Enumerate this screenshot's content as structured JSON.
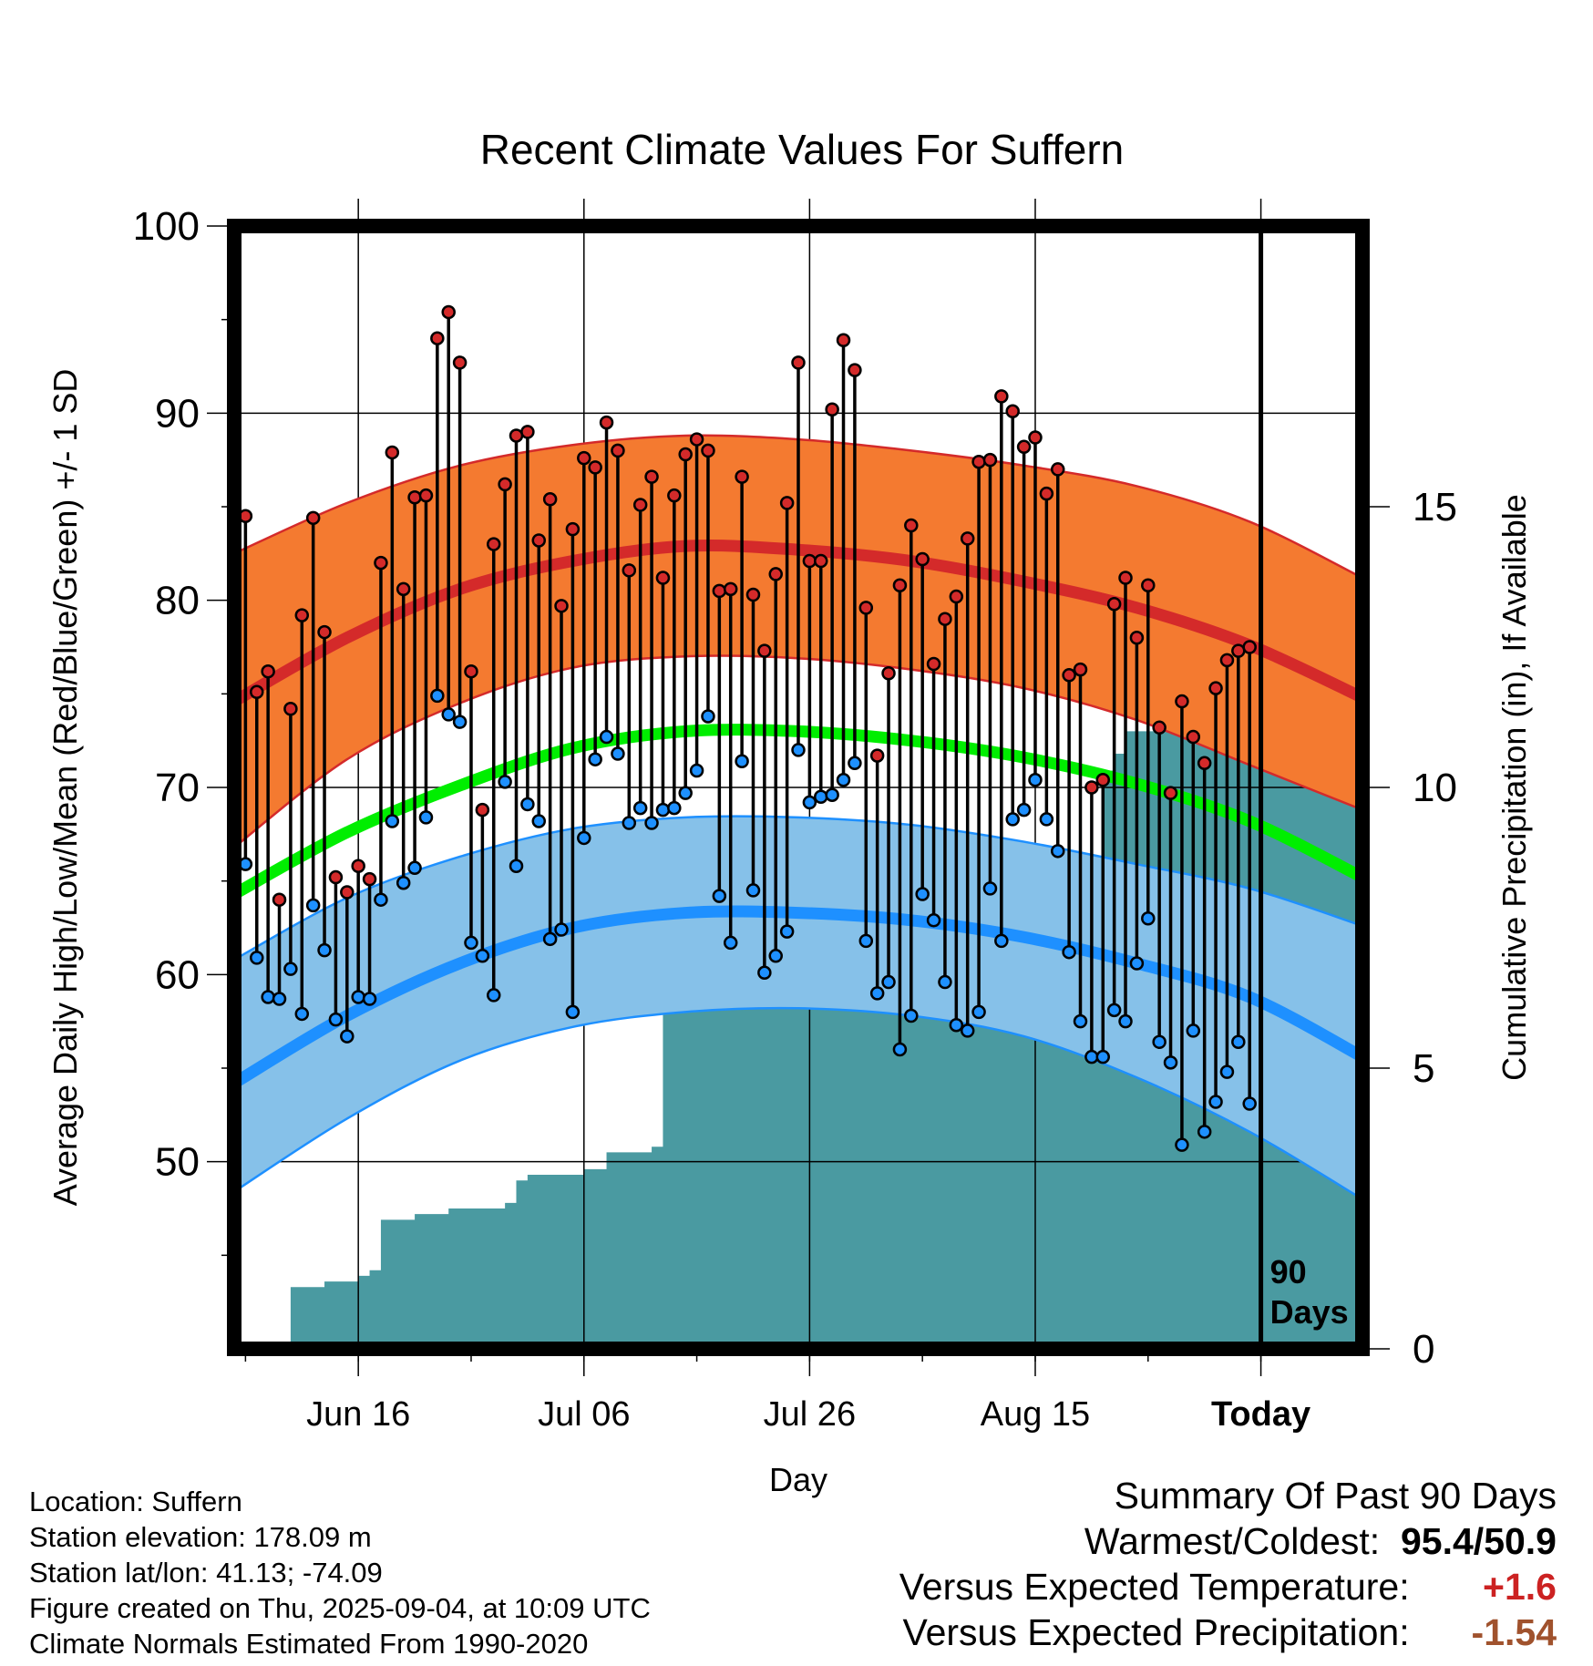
{
  "chart_data": {
    "type": "line",
    "title": "Recent Climate Values For Suffern",
    "xlabel": "Day",
    "ylabel": "Average Daily High/Low/Mean (Red/Blue/Green) +/- 1 SD",
    "y2label": "Cumulative Precipitation (in), If Available",
    "ylim": [
      40,
      100
    ],
    "y2lim": [
      0,
      20
    ],
    "xlim": [
      "2025-06-05",
      "2025-09-13"
    ],
    "yticks": [
      "50",
      "60",
      "70",
      "80",
      "90",
      "100"
    ],
    "y2ticks": [
      "0",
      "5",
      "10",
      "15"
    ],
    "xticks": [
      {
        "label": "Jun 16",
        "date": "2025-06-16"
      },
      {
        "label": "Jul 06",
        "date": "2025-07-06"
      },
      {
        "label": "Jul 26",
        "date": "2025-07-26"
      },
      {
        "label": "Aug 15",
        "date": "2025-08-15"
      },
      {
        "label": "Today",
        "date": "2025-09-04",
        "bold": true
      }
    ],
    "today_marker": {
      "date": "2025-09-04",
      "label_line1": "90",
      "label_line2": "Days"
    },
    "grid": true,
    "normals": {
      "dates": [
        "2025-06-05",
        "2025-06-15",
        "2025-06-25",
        "2025-07-05",
        "2025-07-15",
        "2025-07-25",
        "2025-08-04",
        "2025-08-14",
        "2025-08-24",
        "2025-09-03",
        "2025-09-13"
      ],
      "high_mean": [
        74.6,
        78.0,
        80.6,
        82.1,
        82.9,
        82.7,
        82.1,
        81.0,
        79.6,
        77.6,
        74.8
      ],
      "high_sd_upper": [
        82.5,
        85.2,
        87.2,
        88.3,
        88.8,
        88.6,
        88.0,
        87.2,
        86.1,
        84.2,
        81.2
      ],
      "high_sd_lower": [
        66.8,
        71.5,
        74.5,
        76.4,
        77.0,
        76.9,
        76.3,
        75.3,
        73.6,
        71.2,
        68.8
      ],
      "mean": [
        64.3,
        67.6,
        70.1,
        72.1,
        73.0,
        73.0,
        72.5,
        71.6,
        70.2,
        68.2,
        65.2
      ],
      "low_mean": [
        54.2,
        57.8,
        60.6,
        62.5,
        63.3,
        63.3,
        62.9,
        62.0,
        60.6,
        58.8,
        55.6
      ],
      "low_sd_upper": [
        60.8,
        64.1,
        66.3,
        67.8,
        68.4,
        68.4,
        68.0,
        67.1,
        65.9,
        64.6,
        62.6
      ],
      "low_sd_lower": [
        48.4,
        52.3,
        55.4,
        57.2,
        58.0,
        58.2,
        57.8,
        56.7,
        54.5,
        51.6,
        48.0
      ]
    },
    "series": [
      {
        "name": "High",
        "dates": [
          "2025-06-06",
          "2025-06-07",
          "2025-06-08",
          "2025-06-09",
          "2025-06-10",
          "2025-06-11",
          "2025-06-12",
          "2025-06-13",
          "2025-06-14",
          "2025-06-15",
          "2025-06-16",
          "2025-06-17",
          "2025-06-18",
          "2025-06-19",
          "2025-06-20",
          "2025-06-21",
          "2025-06-22",
          "2025-06-23",
          "2025-06-24",
          "2025-06-25",
          "2025-06-26",
          "2025-06-27",
          "2025-06-28",
          "2025-06-29",
          "2025-06-30",
          "2025-07-01",
          "2025-07-02",
          "2025-07-03",
          "2025-07-04",
          "2025-07-05",
          "2025-07-06",
          "2025-07-07",
          "2025-07-08",
          "2025-07-09",
          "2025-07-10",
          "2025-07-11",
          "2025-07-12",
          "2025-07-13",
          "2025-07-14",
          "2025-07-15",
          "2025-07-16",
          "2025-07-17",
          "2025-07-18",
          "2025-07-19",
          "2025-07-20",
          "2025-07-21",
          "2025-07-22",
          "2025-07-23",
          "2025-07-24",
          "2025-07-25",
          "2025-07-26",
          "2025-07-27",
          "2025-07-28",
          "2025-07-29",
          "2025-07-30",
          "2025-07-31",
          "2025-08-01",
          "2025-08-02",
          "2025-08-03",
          "2025-08-04",
          "2025-08-05",
          "2025-08-06",
          "2025-08-07",
          "2025-08-08",
          "2025-08-09",
          "2025-08-10",
          "2025-08-11",
          "2025-08-12",
          "2025-08-13",
          "2025-08-14",
          "2025-08-15",
          "2025-08-16",
          "2025-08-17",
          "2025-08-18",
          "2025-08-19",
          "2025-08-20",
          "2025-08-21",
          "2025-08-22",
          "2025-08-23",
          "2025-08-24",
          "2025-08-25",
          "2025-08-26",
          "2025-08-27",
          "2025-08-28",
          "2025-08-29",
          "2025-08-30",
          "2025-08-31",
          "2025-09-01",
          "2025-09-02",
          "2025-09-03"
        ],
        "values": [
          84.5,
          75.1,
          76.2,
          64.0,
          74.2,
          79.2,
          84.4,
          78.3,
          65.2,
          64.4,
          65.8,
          65.1,
          82.0,
          87.9,
          80.6,
          85.5,
          85.6,
          94.0,
          95.4,
          92.7,
          76.2,
          68.8,
          83.0,
          86.2,
          88.8,
          89.0,
          83.2,
          85.4,
          79.7,
          83.8,
          87.6,
          87.1,
          89.5,
          88.0,
          81.6,
          85.1,
          86.6,
          81.2,
          85.6,
          87.8,
          88.6,
          88.0,
          80.5,
          80.6,
          86.6,
          80.3,
          77.3,
          81.4,
          85.2,
          92.7,
          82.1,
          82.1,
          90.2,
          93.9,
          92.3,
          79.6,
          71.7,
          76.1,
          80.8,
          84.0,
          82.2,
          76.6,
          79.0,
          80.2,
          83.3,
          87.4,
          87.5,
          90.9,
          90.1,
          88.2,
          88.7,
          85.7,
          87.0,
          76.0,
          76.3,
          70.0,
          70.4,
          79.8,
          81.2,
          78.0,
          80.8,
          73.2,
          69.7,
          74.6,
          72.7,
          71.3,
          75.3,
          76.8,
          77.3,
          77.5
        ]
      },
      {
        "name": "Low",
        "dates": [
          "2025-06-06",
          "2025-06-07",
          "2025-06-08",
          "2025-06-09",
          "2025-06-10",
          "2025-06-11",
          "2025-06-12",
          "2025-06-13",
          "2025-06-14",
          "2025-06-15",
          "2025-06-16",
          "2025-06-17",
          "2025-06-18",
          "2025-06-19",
          "2025-06-20",
          "2025-06-21",
          "2025-06-22",
          "2025-06-23",
          "2025-06-24",
          "2025-06-25",
          "2025-06-26",
          "2025-06-27",
          "2025-06-28",
          "2025-06-29",
          "2025-06-30",
          "2025-07-01",
          "2025-07-02",
          "2025-07-03",
          "2025-07-04",
          "2025-07-05",
          "2025-07-06",
          "2025-07-07",
          "2025-07-08",
          "2025-07-09",
          "2025-07-10",
          "2025-07-11",
          "2025-07-12",
          "2025-07-13",
          "2025-07-14",
          "2025-07-15",
          "2025-07-16",
          "2025-07-17",
          "2025-07-18",
          "2025-07-19",
          "2025-07-20",
          "2025-07-21",
          "2025-07-22",
          "2025-07-23",
          "2025-07-24",
          "2025-07-25",
          "2025-07-26",
          "2025-07-27",
          "2025-07-28",
          "2025-07-29",
          "2025-07-30",
          "2025-07-31",
          "2025-08-01",
          "2025-08-02",
          "2025-08-03",
          "2025-08-04",
          "2025-08-05",
          "2025-08-06",
          "2025-08-07",
          "2025-08-08",
          "2025-08-09",
          "2025-08-10",
          "2025-08-11",
          "2025-08-12",
          "2025-08-13",
          "2025-08-14",
          "2025-08-15",
          "2025-08-16",
          "2025-08-17",
          "2025-08-18",
          "2025-08-19",
          "2025-08-20",
          "2025-08-21",
          "2025-08-22",
          "2025-08-23",
          "2025-08-24",
          "2025-08-25",
          "2025-08-26",
          "2025-08-27",
          "2025-08-28",
          "2025-08-29",
          "2025-08-30",
          "2025-08-31",
          "2025-09-01",
          "2025-09-02",
          "2025-09-03"
        ],
        "values": [
          65.9,
          60.9,
          58.8,
          58.7,
          60.3,
          57.9,
          63.7,
          61.3,
          57.6,
          56.7,
          58.8,
          58.7,
          64.0,
          68.2,
          64.9,
          65.7,
          68.4,
          74.9,
          73.9,
          73.5,
          61.7,
          61.0,
          58.9,
          70.3,
          65.8,
          69.1,
          68.2,
          61.9,
          62.4,
          58.0,
          67.3,
          71.5,
          72.7,
          71.8,
          68.1,
          68.9,
          68.1,
          68.8,
          68.9,
          69.7,
          70.9,
          73.8,
          64.2,
          61.7,
          71.4,
          64.5,
          60.1,
          61.0,
          62.3,
          72.0,
          69.2,
          69.5,
          69.6,
          70.4,
          71.3,
          61.8,
          59.0,
          59.6,
          56.0,
          57.8,
          64.3,
          62.9,
          59.6,
          57.3,
          57.0,
          58.0,
          64.6,
          61.8,
          68.3,
          68.8,
          70.4,
          68.3,
          66.6,
          61.2,
          57.5,
          55.6,
          55.6,
          58.1,
          57.5,
          60.6,
          63.0,
          56.4,
          55.3,
          50.9,
          57.0,
          51.6,
          53.2,
          54.8,
          56.4,
          53.1
        ]
      }
    ],
    "precip_cumulative": {
      "dates": [
        "2025-06-09",
        "2025-06-10",
        "2025-06-13",
        "2025-06-16",
        "2025-06-17",
        "2025-06-18",
        "2025-06-21",
        "2025-06-24",
        "2025-06-29",
        "2025-06-30",
        "2025-07-01",
        "2025-07-06",
        "2025-07-08",
        "2025-07-12",
        "2025-07-13",
        "2025-07-14",
        "2025-07-20",
        "2025-07-27",
        "2025-07-30",
        "2025-07-31",
        "2025-08-01",
        "2025-08-12",
        "2025-08-14",
        "2025-08-15",
        "2025-08-18",
        "2025-08-21",
        "2025-08-22",
        "2025-08-23",
        "2025-09-13"
      ],
      "values": [
        0.0,
        1.1,
        1.2,
        1.3,
        1.4,
        2.3,
        2.4,
        2.5,
        2.6,
        3.0,
        3.1,
        3.2,
        3.5,
        3.6,
        6.0,
        6.1,
        6.2,
        6.4,
        6.9,
        7.3,
        7.35,
        7.6,
        7.8,
        8.6,
        8.6,
        10.3,
        10.6,
        11.0,
        11.0
      ]
    },
    "colors": {
      "high": "#d42a2a",
      "high_band": "#f47a30",
      "mean": "#00ee00",
      "low": "#1e90ff",
      "low_band": "#86c1e9",
      "precip": "#4a9aa1"
    }
  },
  "footer": {
    "location": "Location: Suffern",
    "elevation": "Station elevation: 178.09 m",
    "latlon": "Station lat/lon: 41.13; -74.09",
    "created": "Figure created on Thu, 2025-09-04, at 10:09 UTC",
    "normals": "Climate Normals Estimated From 1990-2020"
  },
  "summary": {
    "title": "Summary Of Past 90 Days",
    "warmest_label": "Warmest/Coldest:",
    "warmest_value": "95.4/50.9",
    "temp_label": "Versus Expected Temperature:",
    "temp_value": "+1.6",
    "temp_color": "#cc2222",
    "precip_label": "Versus Expected Precipitation:",
    "precip_value": "-1.54",
    "precip_color": "#a0522d"
  }
}
